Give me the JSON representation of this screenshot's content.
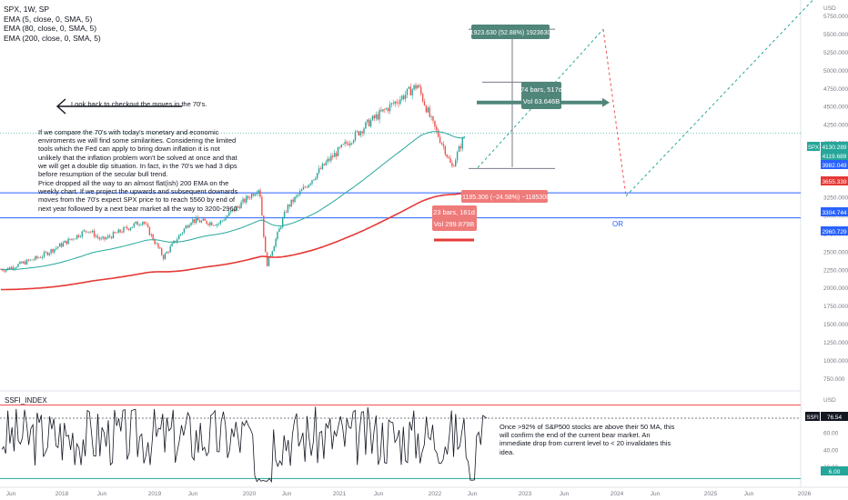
{
  "chart_data": [
    {
      "type": "candlestick",
      "title": "SPX, 1W, SP",
      "legend": [
        {
          "label": "EMA (5, close, 0, SMA, 5)",
          "color": "#131722"
        },
        {
          "label": "EMA (80, close, 0, SMA, 5)",
          "color": "#26a69a"
        },
        {
          "label": "EMA (200, close, 0, SMA, 5)",
          "color": "#e53935"
        }
      ],
      "y_ticks": [
        "USD",
        "5750.000",
        "5500.000",
        "5250.000",
        "5000.000",
        "4750.000",
        "4500.000",
        "4250.000",
        "4000.000",
        "3750.000",
        "3500.000",
        "3250.000",
        "3000.000",
        "2750.000",
        "2500.000",
        "2250.000",
        "2000.000",
        "1750.000",
        "1500.000",
        "1250.000",
        "1000.000",
        "750.000"
      ],
      "ylim": [
        750,
        5800
      ],
      "price_tags": [
        {
          "label": "SPX",
          "value": "4130.289",
          "color": "#26a69a"
        },
        {
          "value": "4119.689",
          "color": "#26a69a"
        },
        {
          "value": "3982.049",
          "color": "#2962ff"
        },
        {
          "value": "3655.339",
          "color": "#e53935"
        },
        {
          "value": "3304.744",
          "color": "#2962ff"
        },
        {
          "value": "2960.729",
          "color": "#2962ff"
        }
      ],
      "horizontal_levels": [
        3304.744,
        2960.729
      ],
      "close_series_approx": [
        {
          "date": "2017-01",
          "close": 2250
        },
        {
          "date": "2017-06",
          "close": 2420
        },
        {
          "date": "2018-01",
          "close": 2800
        },
        {
          "date": "2018-03",
          "close": 2650
        },
        {
          "date": "2018-09",
          "close": 2920
        },
        {
          "date": "2018-12",
          "close": 2420
        },
        {
          "date": "2019-04",
          "close": 2930
        },
        {
          "date": "2019-08",
          "close": 2880
        },
        {
          "date": "2020-02",
          "close": 3380
        },
        {
          "date": "2020-03",
          "close": 2300
        },
        {
          "date": "2020-06",
          "close": 3100
        },
        {
          "date": "2020-12",
          "close": 3750
        },
        {
          "date": "2021-06",
          "close": 4280
        },
        {
          "date": "2022-01",
          "close": 4790
        },
        {
          "date": "2022-03",
          "close": 4300
        },
        {
          "date": "2022-05",
          "close": 3900
        },
        {
          "date": "2022-06",
          "close": 3650
        },
        {
          "date": "2022-08",
          "close": 4130
        }
      ],
      "annotations": {
        "top_measure": "1923.630 (52.88%) 1923630",
        "bars_box": [
          "74 bars, 517d",
          "Vol 63.646B"
        ],
        "drop_measure": "−1185.306 (−24.58%) −1185306",
        "drop_box": [
          "23 bars, 161d",
          "Vol 299.879B"
        ],
        "or_label": "OR",
        "arrow_note": "Look back to checkout the moves in the 70's.",
        "paragraph1": "If we compare the 70's with today's monetary and economic enviroments we will find some similarities. Considering the limited tools which the Fed can apply to bring down inflation it is not unlikely that the inflation problem won't be solved at once and that we will get a double dip situation. In fact, in the 70's we had 3 dips before resumption of the secular bull trend.",
        "paragraph2": "Price dropped all the way to an almost flat(ish) 200 EMA on the weekly chart. If we project the upwards and subsequent downards moves from the 70's expect SPX price to to reach 5560 by end of next year followed by a next bear market all the way to 3200-2960."
      }
    },
    {
      "type": "line",
      "title": "SSFI_INDEX",
      "y_ticks": [
        "USD",
        "80.00",
        "60.00",
        "40.00",
        "20.00"
      ],
      "ylim": [
        0,
        100
      ],
      "price_tags": [
        {
          "label": "SSFI",
          "value": "76.54",
          "color": "#131722"
        },
        {
          "value": "6.00",
          "color": "#26a69a"
        }
      ],
      "levels": [
        92,
        76.54,
        6
      ],
      "note": "Once >92% of S&P500 stocks are above their 50 MA, this will confirm the end of the current bear market. An immediate drop from current level to < 20 invalidates this idea."
    }
  ],
  "x_axis": [
    "Jun",
    "2018",
    "Jun",
    "2019",
    "Jun",
    "2020",
    "Jun",
    "2021",
    "Jun",
    "2022",
    "Jun",
    "2023",
    "Jun",
    "2024",
    "Jun",
    "2025",
    "Jun",
    "2026"
  ]
}
